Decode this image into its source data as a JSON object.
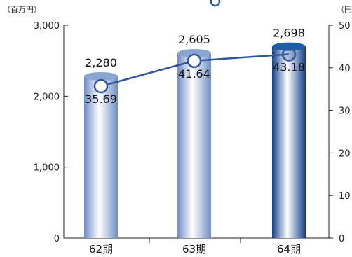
{
  "chart_data": {
    "type": "bar",
    "categories": [
      "62期",
      "63期",
      "64期"
    ],
    "left_axis": {
      "unit": "（百万円）",
      "ticks": [
        "0",
        "1,000",
        "2,000",
        "3,000"
      ],
      "ylim": [
        0,
        3000
      ]
    },
    "right_axis": {
      "unit": "（円",
      "ticks": [
        "0",
        "10",
        "20",
        "30",
        "40",
        "50"
      ],
      "ylim": [
        0,
        50
      ]
    },
    "bars": {
      "values": [
        2280,
        2605,
        2698
      ],
      "labels": [
        "2,280",
        "2,605",
        "2,698"
      ],
      "colors": [
        "#8aa3cf",
        "#8aa3cf",
        "#1a5fa8"
      ]
    },
    "line": {
      "values": [
        35.69,
        41.64,
        43.18
      ],
      "labels": [
        "35.69",
        "41.64",
        "43.18"
      ],
      "color": "#2f56a0",
      "marker_fills": [
        "#ffffff",
        "#ffffff",
        "#2f56a0"
      ]
    },
    "legend": {
      "position": "top-right"
    },
    "grid": false
  }
}
